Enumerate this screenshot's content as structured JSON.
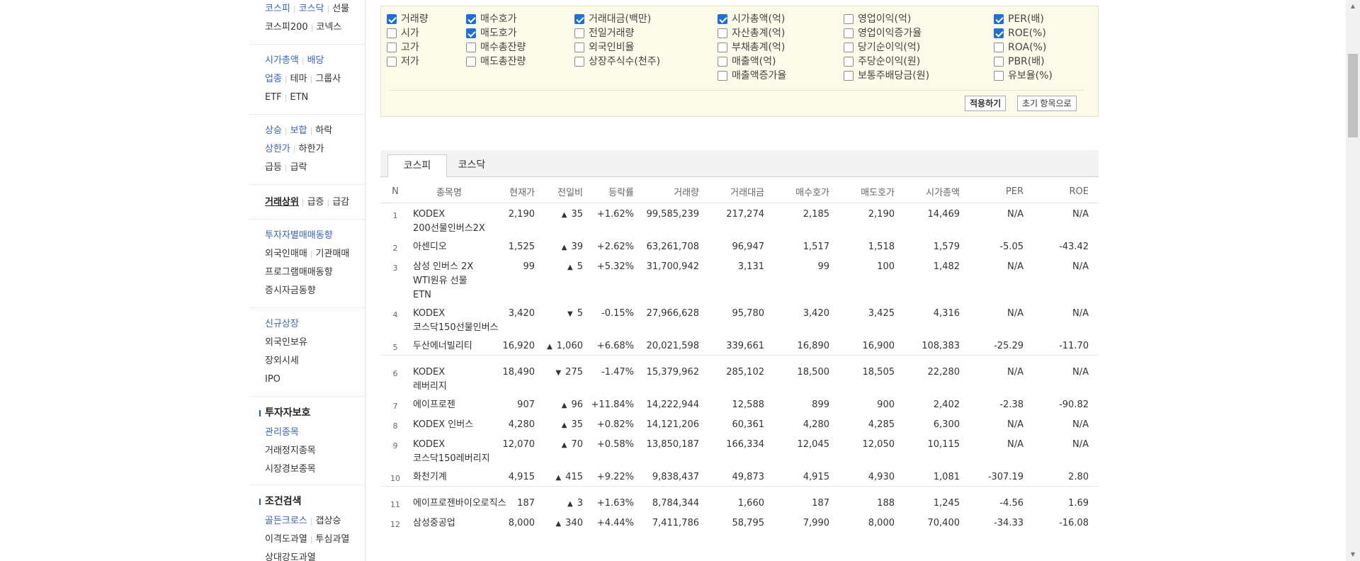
{
  "sidebar": {
    "groups": [
      {
        "lines": [
          [
            "코스피",
            "코스닥",
            "선물"
          ],
          [
            "코스피200",
            "코넥스"
          ]
        ]
      },
      {
        "lines": [
          [
            "시가총액",
            "배당"
          ],
          [
            "업종",
            "테마",
            "그룹사"
          ],
          [
            "ETF",
            "ETN"
          ]
        ]
      },
      {
        "lines": [
          [
            "상승",
            "보합",
            "하락"
          ],
          [
            "상한가",
            "하한가"
          ],
          [
            "급등",
            "급락"
          ]
        ]
      },
      {
        "lines": [
          [
            "거래상위",
            "급증",
            "급감"
          ]
        ]
      },
      {
        "lines": [
          [
            "투자자별매매동향"
          ],
          [
            "외국인매매",
            "기관매매"
          ],
          [
            "프로그램매매동향"
          ],
          [
            "증시자금동향"
          ]
        ]
      },
      {
        "lines": [
          [
            "신규상장"
          ],
          [
            "외국인보유"
          ],
          [
            "장외시세"
          ],
          [
            "IPO"
          ]
        ]
      }
    ],
    "section_investor": {
      "title": "투자자보호",
      "items": [
        "관리종목",
        "거래정지종목",
        "시장경보종목"
      ]
    },
    "section_condition": {
      "title": "조건검색",
      "lines": [
        [
          "골든크로스",
          "갭상승"
        ],
        [
          "이격도과열",
          "투심과열"
        ],
        [
          "상대강도과열"
        ]
      ]
    }
  },
  "options": {
    "columns": [
      [
        {
          "label": "거래량",
          "checked": true
        },
        {
          "label": "시가",
          "checked": false
        },
        {
          "label": "고가",
          "checked": false
        },
        {
          "label": "저가",
          "checked": false
        }
      ],
      [
        {
          "label": "매수호가",
          "checked": true
        },
        {
          "label": "매도호가",
          "checked": true
        },
        {
          "label": "매수총잔량",
          "checked": false
        },
        {
          "label": "매도총잔량",
          "checked": false
        }
      ],
      [
        {
          "label": "거래대금(백만)",
          "checked": true
        },
        {
          "label": "전일거래량",
          "checked": false
        },
        {
          "label": "외국인비율",
          "checked": false
        },
        {
          "label": "상장주식수(천주)",
          "checked": false
        }
      ],
      [
        {
          "label": "시가총액(억)",
          "checked": true
        },
        {
          "label": "자산총계(억)",
          "checked": false
        },
        {
          "label": "부채총계(억)",
          "checked": false
        },
        {
          "label": "매출액(억)",
          "checked": false
        },
        {
          "label": "매출액증가율",
          "checked": false
        }
      ],
      [
        {
          "label": "영업이익(억)",
          "checked": false
        },
        {
          "label": "영업이익증가율",
          "checked": false
        },
        {
          "label": "당기순이익(억)",
          "checked": false
        },
        {
          "label": "주당순이익(원)",
          "checked": false
        },
        {
          "label": "보통주배당금(원)",
          "checked": false
        }
      ],
      [
        {
          "label": "PER(배)",
          "checked": true
        },
        {
          "label": "ROE(%)",
          "checked": true
        },
        {
          "label": "ROA(%)",
          "checked": false
        },
        {
          "label": "PBR(배)",
          "checked": false
        },
        {
          "label": "유보율(%)",
          "checked": false
        }
      ]
    ],
    "apply_label": "적용하기",
    "reset_label": "초기 항목으로"
  },
  "tabs": [
    {
      "label": "코스피",
      "active": true
    },
    {
      "label": "코스닥",
      "active": false
    }
  ],
  "table": {
    "headers": [
      "N",
      "종목명",
      "현재가",
      "전일비",
      "등락률",
      "거래량",
      "거래대금",
      "매수호가",
      "매도호가",
      "시가총액",
      "PER",
      "ROE"
    ],
    "rows": [
      {
        "n": "1",
        "name": "KODEX 200선물인버스2X",
        "price": "2,190",
        "dir": "up",
        "change": "35",
        "rate": "+1.62%",
        "volume": "99,585,239",
        "amount": "217,274",
        "bid": "2,185",
        "ask": "2,190",
        "mcap": "14,469",
        "per": "N/A",
        "roe": "N/A",
        "grp": false
      },
      {
        "n": "2",
        "name": "아센디오",
        "price": "1,525",
        "dir": "up",
        "change": "39",
        "rate": "+2.62%",
        "volume": "63,261,708",
        "amount": "96,947",
        "bid": "1,517",
        "ask": "1,518",
        "mcap": "1,579",
        "per": "-5.05",
        "roe": "-43.42",
        "grp": false
      },
      {
        "n": "3",
        "name": "삼성 인버스 2X WTI원유 선물 ETN",
        "price": "99",
        "dir": "up",
        "change": "5",
        "rate": "+5.32%",
        "volume": "31,700,942",
        "amount": "3,131",
        "bid": "99",
        "ask": "100",
        "mcap": "1,482",
        "per": "N/A",
        "roe": "N/A",
        "grp": false
      },
      {
        "n": "4",
        "name": "KODEX 코스닥150선물인버스",
        "price": "3,420",
        "dir": "down",
        "change": "5",
        "rate": "-0.15%",
        "volume": "27,966,628",
        "amount": "95,780",
        "bid": "3,420",
        "ask": "3,425",
        "mcap": "4,316",
        "per": "N/A",
        "roe": "N/A",
        "grp": false
      },
      {
        "n": "5",
        "name": "두산에너빌리티",
        "price": "16,920",
        "dir": "up",
        "change": "1,060",
        "rate": "+6.68%",
        "volume": "20,021,598",
        "amount": "339,661",
        "bid": "16,890",
        "ask": "16,900",
        "mcap": "108,383",
        "per": "-25.29",
        "roe": "-11.70",
        "grp": false
      },
      {
        "n": "6",
        "name": "KODEX 레버리지",
        "price": "18,490",
        "dir": "down",
        "change": "275",
        "rate": "-1.47%",
        "volume": "15,379,962",
        "amount": "285,102",
        "bid": "18,500",
        "ask": "18,505",
        "mcap": "22,280",
        "per": "N/A",
        "roe": "N/A",
        "grp": true
      },
      {
        "n": "7",
        "name": "에이프로젠",
        "price": "907",
        "dir": "up",
        "change": "96",
        "rate": "+11.84%",
        "volume": "14,222,944",
        "amount": "12,588",
        "bid": "899",
        "ask": "900",
        "mcap": "2,402",
        "per": "-2.38",
        "roe": "-90.82",
        "grp": false
      },
      {
        "n": "8",
        "name": "KODEX 인버스",
        "price": "4,280",
        "dir": "up",
        "change": "35",
        "rate": "+0.82%",
        "volume": "14,121,206",
        "amount": "60,361",
        "bid": "4,280",
        "ask": "4,285",
        "mcap": "6,300",
        "per": "N/A",
        "roe": "N/A",
        "grp": false
      },
      {
        "n": "9",
        "name": "KODEX 코스닥150레버리지",
        "price": "12,070",
        "dir": "up",
        "change": "70",
        "rate": "+0.58%",
        "volume": "13,850,187",
        "amount": "166,334",
        "bid": "12,045",
        "ask": "12,050",
        "mcap": "10,115",
        "per": "N/A",
        "roe": "N/A",
        "grp": false
      },
      {
        "n": "10",
        "name": "화천기계",
        "price": "4,915",
        "dir": "up",
        "change": "415",
        "rate": "+9.22%",
        "volume": "9,838,437",
        "amount": "49,873",
        "bid": "4,915",
        "ask": "4,930",
        "mcap": "1,081",
        "per": "-307.19",
        "roe": "2.80",
        "grp": false
      },
      {
        "n": "11",
        "name": "에이프로젠바이오로직스",
        "price": "187",
        "dir": "up",
        "change": "3",
        "rate": "+1.63%",
        "volume": "8,784,344",
        "amount": "1,660",
        "bid": "187",
        "ask": "188",
        "mcap": "1,245",
        "per": "-4.56",
        "roe": "1.69",
        "grp": true
      },
      {
        "n": "12",
        "name": "삼성중공업",
        "price": "8,000",
        "dir": "up",
        "change": "340",
        "rate": "+4.44%",
        "volume": "7,411,786",
        "amount": "58,795",
        "bid": "7,990",
        "ask": "8,000",
        "mcap": "70,400",
        "per": "-34.33",
        "roe": "-16.08",
        "grp": false
      }
    ]
  },
  "colors": {
    "up": "#d1323a",
    "down": "#1b63c9",
    "link": "#3b62b7",
    "panel_bg": "#fcfbe9"
  },
  "icons": {
    "up_arrow": "up-triangle-icon",
    "down_arrow": "down-triangle-icon"
  }
}
